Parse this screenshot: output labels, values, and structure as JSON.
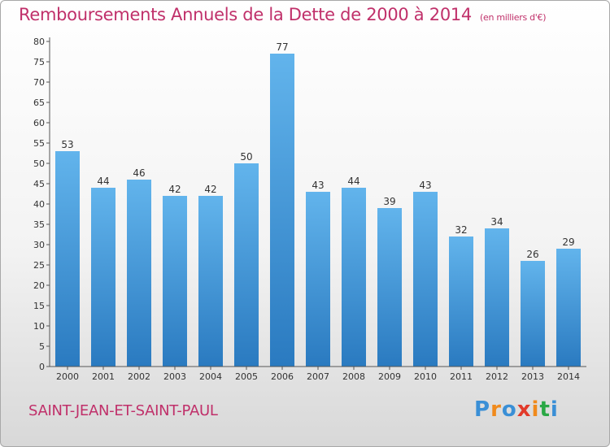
{
  "title": "Remboursements Annuels de la Dette de 2000 à 2014",
  "subtitle": "(en milliers d'€)",
  "commune": "SAINT-JEAN-ET-SAINT-PAUL",
  "logo": {
    "letters": [
      "P",
      "r",
      "o",
      "x",
      "i",
      "t",
      "i"
    ],
    "colors": [
      "#3a8fd6",
      "#f08a1c",
      "#3a8fd6",
      "#e23a2a",
      "#f08a1c",
      "#2aa845",
      "#3a8fd6"
    ]
  },
  "colors": {
    "bar_top": "#62b4ec",
    "bar_bottom": "#2a7ac0",
    "axis": "#555555",
    "grid": "#dddddd"
  },
  "chart_data": {
    "type": "bar",
    "title": "Remboursements Annuels de la Dette de 2000 à 2014",
    "xlabel": "",
    "ylabel": "",
    "ylim": [
      0,
      80
    ],
    "yticks": [
      0,
      5,
      10,
      15,
      20,
      25,
      30,
      35,
      40,
      45,
      50,
      55,
      60,
      65,
      70,
      75,
      80
    ],
    "categories": [
      "2000",
      "2001",
      "2002",
      "2003",
      "2004",
      "2005",
      "2006",
      "2007",
      "2008",
      "2009",
      "2010",
      "2011",
      "2012",
      "2013",
      "2014"
    ],
    "values": [
      53,
      44,
      46,
      42,
      42,
      50,
      77,
      43,
      44,
      39,
      43,
      32,
      34,
      26,
      29
    ]
  }
}
